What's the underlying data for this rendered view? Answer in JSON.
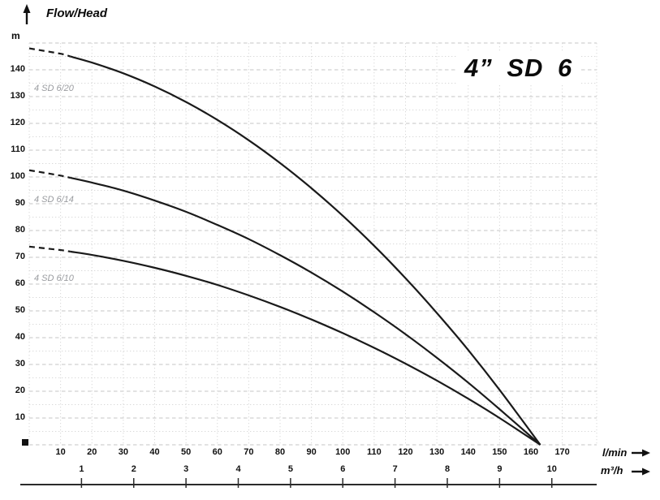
{
  "labels": {
    "flow_head": "Flow/Head",
    "m_unit": "m"
  },
  "chart_data": {
    "type": "line",
    "title": "4” SD 6",
    "ylabel": "Flow/Head (m)",
    "xlabel": "l/min",
    "xlabel2": "m³/h",
    "xlim": [
      0,
      175
    ],
    "ylim": [
      0,
      150
    ],
    "grid": true,
    "grid_style": "dotted light gray, major dashed every 10 m, minor dotted every 5 m, vertical dotted every 10 l/min",
    "legend_position": "labels near each curve, left side",
    "y_ticks": [
      10,
      20,
      30,
      40,
      50,
      60,
      70,
      80,
      90,
      100,
      110,
      120,
      130,
      140
    ],
    "x_lmin_ticks": [
      10,
      20,
      30,
      40,
      50,
      60,
      70,
      80,
      90,
      100,
      110,
      120,
      130,
      140,
      150,
      160,
      170
    ],
    "x_m3h_ticks": [
      1,
      2,
      3,
      4,
      5,
      6,
      7,
      8,
      9,
      10
    ],
    "series": [
      {
        "name": "4 SD 6/20",
        "dashed_until_q": 13,
        "points": [
          [
            0,
            148
          ],
          [
            10,
            146
          ],
          [
            20,
            142.7
          ],
          [
            30,
            138.7
          ],
          [
            40,
            133.8
          ],
          [
            50,
            128
          ],
          [
            60,
            121.3
          ],
          [
            70,
            113.7
          ],
          [
            80,
            105.2
          ],
          [
            90,
            95.8
          ],
          [
            100,
            85.5
          ],
          [
            110,
            74.3
          ],
          [
            120,
            62.2
          ],
          [
            130,
            49.2
          ],
          [
            140,
            35.4
          ],
          [
            150,
            20.5
          ],
          [
            163,
            0
          ]
        ]
      },
      {
        "name": "4 SD 6/14",
        "dashed_until_q": 13,
        "points": [
          [
            0,
            102.5
          ],
          [
            10,
            100.5
          ],
          [
            20,
            97.9
          ],
          [
            30,
            94.9
          ],
          [
            40,
            91.2
          ],
          [
            50,
            87
          ],
          [
            60,
            82.1
          ],
          [
            70,
            76.8
          ],
          [
            80,
            70.8
          ],
          [
            90,
            64.3
          ],
          [
            100,
            57.2
          ],
          [
            110,
            49.5
          ],
          [
            120,
            41.3
          ],
          [
            130,
            32.5
          ],
          [
            140,
            23.2
          ],
          [
            150,
            13.3
          ],
          [
            163,
            0
          ]
        ]
      },
      {
        "name": "4 SD 6/10",
        "dashed_until_q": 13,
        "points": [
          [
            0,
            74
          ],
          [
            10,
            72.7
          ],
          [
            20,
            70.9
          ],
          [
            30,
            68.7
          ],
          [
            40,
            66.1
          ],
          [
            50,
            63.1
          ],
          [
            60,
            59.7
          ],
          [
            70,
            55.8
          ],
          [
            80,
            51.5
          ],
          [
            90,
            46.8
          ],
          [
            100,
            41.7
          ],
          [
            110,
            36.2
          ],
          [
            120,
            30.3
          ],
          [
            130,
            24
          ],
          [
            140,
            17.2
          ],
          [
            150,
            10
          ],
          [
            163,
            0
          ]
        ]
      }
    ],
    "colors": {
      "curve": "#1a1a1a",
      "grid_major": "#c4c4c4",
      "grid_minor": "#d8d8d8",
      "axis_line": "#2b2b2b",
      "series_label": "#9a9ca0",
      "text": "#0b0b0b"
    }
  }
}
